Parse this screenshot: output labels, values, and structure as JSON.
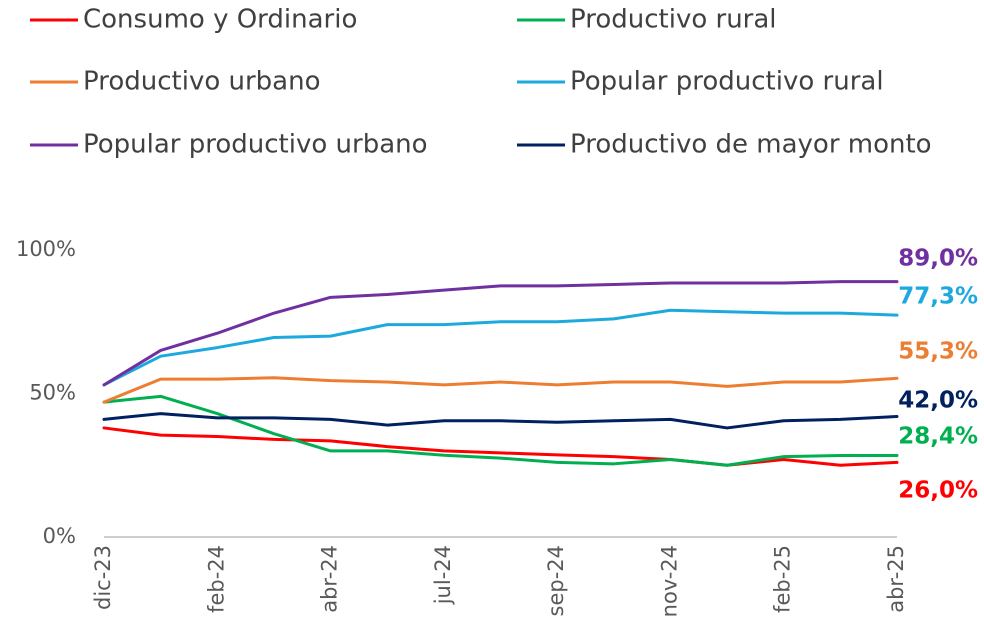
{
  "chart_data": {
    "type": "line",
    "categories": [
      "dic-23",
      null,
      "feb-24",
      null,
      "abr-24",
      null,
      "jul-24",
      null,
      "sep-24",
      null,
      "nov-24",
      null,
      "feb-25",
      null,
      "abr-25"
    ],
    "ylim": [
      0,
      100
    ],
    "yticks": [
      {
        "value": 0,
        "label": "0%"
      },
      {
        "value": 50,
        "label": "50%"
      },
      {
        "value": 100,
        "label": "100%"
      }
    ],
    "grid": false,
    "legend": "top",
    "series": [
      {
        "name": "Consumo y Ordinario",
        "color": "#ff0000",
        "values": [
          38,
          35.5,
          35,
          34,
          33.5,
          31.5,
          30,
          29.3,
          28.6,
          28,
          27,
          25,
          27,
          25,
          26.0
        ],
        "value_labels": [
          null,
          null,
          null,
          null,
          null,
          null,
          null,
          null,
          null,
          null,
          null,
          null,
          null,
          null,
          "26,0%"
        ]
      },
      {
        "name": "Productivo rural",
        "color": "#00b050",
        "values": [
          47,
          49,
          43,
          36,
          30,
          30,
          28.5,
          27.5,
          26,
          25.5,
          27,
          25,
          28,
          28.4,
          28.4
        ],
        "value_labels": [
          null,
          null,
          null,
          null,
          null,
          null,
          null,
          null,
          null,
          null,
          null,
          null,
          null,
          null,
          "28,4%"
        ]
      },
      {
        "name": "Productivo urbano",
        "color": "#ed7d31",
        "values": [
          47,
          55,
          55,
          55.5,
          54.5,
          54,
          53,
          54,
          53,
          54,
          54,
          52.5,
          54,
          54,
          55.3
        ],
        "value_labels": [
          null,
          null,
          null,
          null,
          null,
          null,
          null,
          null,
          null,
          null,
          null,
          null,
          null,
          null,
          "55,3%"
        ]
      },
      {
        "name": "Popular productivo rural",
        "color": "#1ba9de",
        "values": [
          53,
          63,
          66,
          69.5,
          70,
          74,
          74,
          75,
          75,
          76,
          79,
          78.5,
          78,
          78,
          77.3
        ],
        "value_labels": [
          null,
          null,
          null,
          null,
          null,
          null,
          null,
          null,
          null,
          null,
          null,
          null,
          null,
          null,
          "77,3%"
        ]
      },
      {
        "name": "Popular productivo urbano",
        "color": "#7030a0",
        "values": [
          53,
          65,
          71,
          78,
          83.5,
          84.5,
          86,
          87.5,
          87.5,
          88,
          88.5,
          88.5,
          88.5,
          89,
          89.0
        ],
        "value_labels": [
          null,
          null,
          null,
          null,
          null,
          null,
          null,
          null,
          null,
          null,
          null,
          null,
          null,
          null,
          "89,0%"
        ]
      },
      {
        "name": "Productivo de mayor monto",
        "color": "#002060",
        "values": [
          41,
          43,
          41.5,
          41.5,
          41,
          39,
          40.5,
          40.5,
          40,
          40.5,
          41,
          38,
          40.5,
          41,
          42.0
        ],
        "value_labels": [
          null,
          null,
          null,
          null,
          null,
          null,
          null,
          null,
          null,
          null,
          null,
          null,
          null,
          null,
          "42,0%"
        ]
      }
    ]
  }
}
